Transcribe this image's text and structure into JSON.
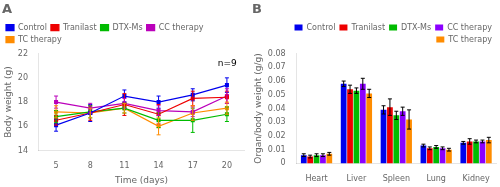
{
  "chart_data": [
    {
      "type": "line",
      "title": "A",
      "x": [
        5,
        8,
        11,
        14,
        17,
        20
      ],
      "series": [
        {
          "name": "Control",
          "color": "#0000EE",
          "marker": "square",
          "values": [
            16.1,
            17.1,
            18.5,
            18.0,
            18.6,
            19.4
          ],
          "errors": [
            0.5,
            0.7,
            0.5,
            0.5,
            0.5,
            0.6
          ]
        },
        {
          "name": "Tranilast",
          "color": "#EE0000",
          "marker": "square",
          "values": [
            16.5,
            17.1,
            17.8,
            17.0,
            18.3,
            18.4
          ],
          "errors": [
            0.4,
            0.6,
            0.9,
            0.8,
            0.6,
            0.5
          ]
        },
        {
          "name": "DTX-Ms",
          "color": "#00BB00",
          "marker": "square",
          "values": [
            16.8,
            17.2,
            17.5,
            16.5,
            16.5,
            17.0
          ],
          "errors": [
            0.5,
            0.5,
            0.4,
            0.6,
            1.0,
            0.6
          ]
        },
        {
          "name": "CC therapy",
          "color": "#BB00BB",
          "marker": "square",
          "values": [
            18.0,
            17.5,
            17.9,
            17.3,
            17.2,
            18.5
          ],
          "errors": [
            0.5,
            0.4,
            0.4,
            0.4,
            0.4,
            0.6
          ]
        },
        {
          "name": "TC therapy",
          "color": "#FF8C00",
          "marker": "square",
          "values": [
            17.2,
            17.1,
            17.5,
            16.0,
            17.1,
            17.5
          ],
          "errors": [
            0.5,
            0.4,
            0.4,
            0.7,
            0.6,
            0.5
          ]
        }
      ],
      "xlabel": "Time (days)",
      "ylabel": "Body weight (g)",
      "xlim": [
        3.5,
        21.5
      ],
      "xticks": [
        5,
        8,
        11,
        14,
        17,
        20
      ],
      "ylim": [
        14,
        22
      ],
      "yticks": [
        14,
        16,
        18,
        20,
        22
      ],
      "legend": "upper left",
      "grid": false,
      "annotations": [
        {
          "text": "n=9",
          "x": 19.2,
          "y": 21.0
        }
      ]
    },
    {
      "type": "bar",
      "title": "B",
      "categories": [
        "Heart",
        "Liver",
        "Spleen",
        "Lung",
        "Kidney"
      ],
      "series": [
        {
          "name": "Control",
          "color": "#0000EE",
          "values": [
            0.006,
            0.058,
            0.039,
            0.013,
            0.015
          ],
          "errors": [
            0.001,
            0.002,
            0.003,
            0.001,
            0.001
          ]
        },
        {
          "name": "Tranilast",
          "color": "#EE0000",
          "values": [
            0.005,
            0.054,
            0.041,
            0.011,
            0.016
          ],
          "errors": [
            0.001,
            0.003,
            0.006,
            0.001,
            0.002
          ]
        },
        {
          "name": "DTX-Ms",
          "color": "#00BB00",
          "values": [
            0.006,
            0.053,
            0.035,
            0.012,
            0.016
          ],
          "errors": [
            0.001,
            0.002,
            0.003,
            0.001,
            0.001
          ]
        },
        {
          "name": "CC therapy",
          "color": "#8B00FF",
          "values": [
            0.006,
            0.058,
            0.038,
            0.011,
            0.016
          ],
          "errors": [
            0.001,
            0.004,
            0.003,
            0.001,
            0.001
          ]
        },
        {
          "name": "TC therapy",
          "color": "#FF8C00",
          "values": [
            0.007,
            0.051,
            0.032,
            0.01,
            0.017
          ],
          "errors": [
            0.001,
            0.003,
            0.007,
            0.001,
            0.002
          ]
        }
      ],
      "ylabel": "Organ/body weight (g/g)",
      "ylim": [
        0,
        0.08
      ],
      "yticks": [
        0,
        0.01,
        0.02,
        0.03,
        0.04,
        0.05,
        0.06,
        0.07,
        0.08
      ],
      "legend": "upper right",
      "grid": false
    }
  ]
}
